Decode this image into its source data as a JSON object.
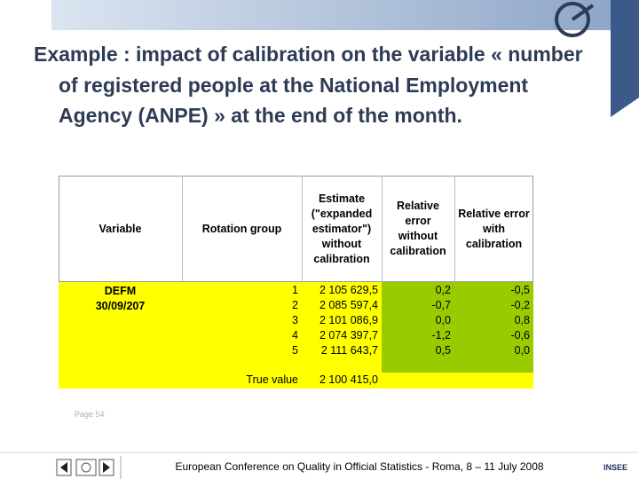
{
  "title": "Example : impact of calibration on the variable « number of registered people at the National Employment Agency (ANPE) » at the end of the month.",
  "table": {
    "header": [
      "Variable",
      "Rotation group",
      "Estimate (\"expanded estimator\") without calibration",
      "Relative error without calibration",
      "Relative error with calibration"
    ],
    "variable": [
      "DEFM",
      "30/09/207"
    ],
    "rows": [
      [
        "1",
        "2 105 629,5",
        "0,2",
        "-0,5"
      ],
      [
        "2",
        "2 085 597,4",
        "-0,7",
        "-0,2"
      ],
      [
        "3",
        "2 101 086,9",
        "0,0",
        "0,8"
      ],
      [
        "4",
        "2 074 397,7",
        "-1,2",
        "-0,6"
      ],
      [
        "5",
        "2 111 643,7",
        "0,5",
        "0,0"
      ]
    ],
    "true_value": {
      "label": "True value",
      "value": "2 100 415,0"
    }
  },
  "footer": {
    "page": "Page 54",
    "conference": "European Conference on Quality in Official Statistics - Roma, 8 – 11 July 2008",
    "logo": "INSEE"
  }
}
